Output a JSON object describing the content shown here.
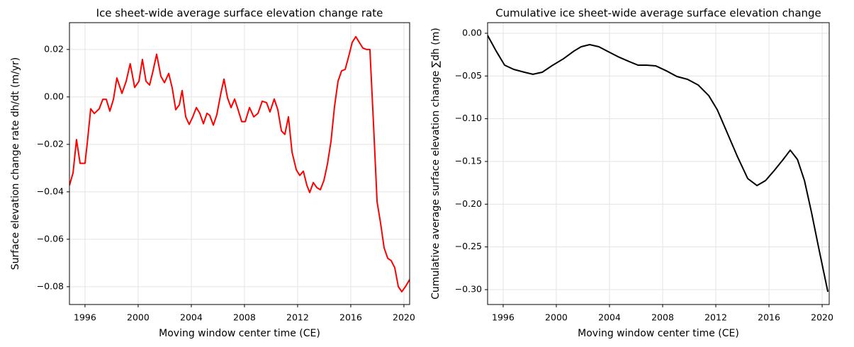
{
  "chart_data": [
    {
      "type": "line",
      "title": "Ice sheet-wide average surface elevation change rate",
      "xlabel": "Moving window center time (CE)",
      "ylabel": "Surface elevation change rate dh/dt (m/yr)",
      "x": [
        1994.83,
        1995.1,
        1995.36,
        1995.63,
        1996.0,
        1996.16,
        1996.43,
        1996.7,
        1997.07,
        1997.34,
        1997.6,
        1997.87,
        1998.14,
        1998.4,
        1998.78,
        1999.1,
        1999.4,
        1999.74,
        2000.06,
        2000.32,
        2000.59,
        2000.86,
        2001.12,
        2001.39,
        2001.71,
        2001.98,
        2002.3,
        2002.57,
        2002.83,
        2003.1,
        2003.31,
        2003.58,
        2003.84,
        2004.11,
        2004.38,
        2004.64,
        2004.91,
        2005.18,
        2005.39,
        2005.66,
        2005.92,
        2006.24,
        2006.46,
        2006.72,
        2006.99,
        2007.26,
        2007.52,
        2007.79,
        2008.06,
        2008.38,
        2008.7,
        2009.02,
        2009.34,
        2009.66,
        2009.92,
        2010.24,
        2010.51,
        2010.78,
        2011.04,
        2011.31,
        2011.58,
        2011.9,
        2012.16,
        2012.43,
        2012.7,
        2012.91,
        2013.18,
        2013.44,
        2013.71,
        2013.98,
        2014.24,
        2014.51,
        2014.78,
        2015.04,
        2015.31,
        2015.58,
        2015.84,
        2016.11,
        2016.38,
        2016.64,
        2016.91,
        2017.18,
        2017.44,
        2017.71,
        2017.98,
        2018.24,
        2018.51,
        2018.78,
        2019.04,
        2019.31,
        2019.58,
        2019.84,
        2020.11,
        2020.43
      ],
      "series": [
        {
          "name": "Surface elevation change rate",
          "color": "#ff0000",
          "values": [
            -0.0373,
            -0.032,
            -0.018,
            -0.028,
            -0.028,
            -0.02,
            -0.005,
            -0.007,
            -0.005,
            -0.001,
            -0.001,
            -0.006,
            -0.001,
            0.008,
            0.0015,
            0.0066,
            0.014,
            0.004,
            0.0066,
            0.0158,
            0.0066,
            0.005,
            0.011,
            0.018,
            0.0087,
            0.006,
            0.0099,
            0.0036,
            -0.0054,
            -0.0033,
            0.0027,
            -0.0084,
            -0.0116,
            -0.0084,
            -0.0045,
            -0.0069,
            -0.0113,
            -0.0069,
            -0.0078,
            -0.0119,
            -0.0075,
            0.002,
            0.0075,
            -0.0003,
            -0.0045,
            -0.0009,
            -0.0054,
            -0.0104,
            -0.0104,
            -0.0045,
            -0.0084,
            -0.0069,
            -0.0018,
            -0.0024,
            -0.0063,
            -0.0009,
            -0.0054,
            -0.0143,
            -0.0158,
            -0.0084,
            -0.0233,
            -0.0307,
            -0.0331,
            -0.0313,
            -0.0373,
            -0.0403,
            -0.0361,
            -0.0382,
            -0.0391,
            -0.0352,
            -0.0284,
            -0.0188,
            -0.0039,
            0.0066,
            0.011,
            0.0116,
            0.017,
            0.023,
            0.0254,
            0.023,
            0.0206,
            0.02,
            0.02,
            -0.0113,
            -0.0442,
            -0.0531,
            -0.0636,
            -0.068,
            -0.069,
            -0.072,
            -0.08,
            -0.0821,
            -0.08,
            -0.077
          ]
        }
      ],
      "xlim": [
        1994.83,
        2020.43
      ],
      "xticks": [
        1996,
        2000,
        2004,
        2008,
        2012,
        2016,
        2020
      ],
      "ylim": [
        -0.0875,
        0.0313
      ],
      "yticks": [
        0.02,
        {
          "value": 0,
          "label": "0.00"
        },
        {
          "value": -0.02,
          "label": "−0.02"
        },
        {
          "value": -0.04,
          "label": "−0.04"
        },
        {
          "value": -0.06,
          "label": "−0.06"
        },
        {
          "value": -0.08,
          "label": "−0.08"
        }
      ],
      "grid": true
    },
    {
      "type": "line",
      "title": "Cumulative ice sheet-wide average surface elevation change",
      "xlabel": "Moving window center time (CE)",
      "ylabel": "Cumulative average surface elevation change ∑dh (m)",
      "x": [
        1994.83,
        1995.47,
        1996.11,
        1996.8,
        1997.6,
        1998.24,
        1998.94,
        1999.74,
        2000.54,
        2001.34,
        2001.87,
        2002.51,
        2003.2,
        2003.9,
        2004.64,
        2005.5,
        2006.14,
        2006.78,
        2007.47,
        2008.27,
        2009.07,
        2009.87,
        2010.67,
        2011.47,
        2012.11,
        2012.8,
        2013.6,
        2014.4,
        2015.1,
        2015.74,
        2016.43,
        2017.07,
        2017.6,
        2018.14,
        2018.67,
        2019.2,
        2019.74,
        2020.43
      ],
      "series": [
        {
          "name": "Cumulative surface elevation change",
          "color": "#000000",
          "values": [
            -0.0025,
            -0.0207,
            -0.0373,
            -0.0423,
            -0.0456,
            -0.048,
            -0.0456,
            -0.0373,
            -0.0298,
            -0.0207,
            -0.0158,
            -0.0133,
            -0.0158,
            -0.0215,
            -0.0274,
            -0.0332,
            -0.0373,
            -0.0373,
            -0.0381,
            -0.0439,
            -0.0506,
            -0.0539,
            -0.0605,
            -0.073,
            -0.0895,
            -0.1144,
            -0.1434,
            -0.17,
            -0.1782,
            -0.1724,
            -0.16,
            -0.1476,
            -0.1368,
            -0.1476,
            -0.1724,
            -0.2097,
            -0.2512,
            -0.3026
          ]
        }
      ],
      "xlim": [
        1994.83,
        2020.53
      ],
      "xticks": [
        1996,
        2000,
        2004,
        2008,
        2012,
        2016,
        2020
      ],
      "ylim": [
        -0.3174,
        0.0124
      ],
      "yticks": [
        {
          "value": 0,
          "label": "0.00"
        },
        {
          "value": -0.05,
          "label": "−0.05"
        },
        {
          "value": -0.1,
          "label": "−0.10"
        },
        {
          "value": -0.15,
          "label": "−0.15"
        },
        {
          "value": -0.2,
          "label": "−0.20"
        },
        {
          "value": -0.25,
          "label": "−0.25"
        },
        {
          "value": -0.3,
          "label": "−0.30"
        }
      ],
      "grid": true
    }
  ]
}
